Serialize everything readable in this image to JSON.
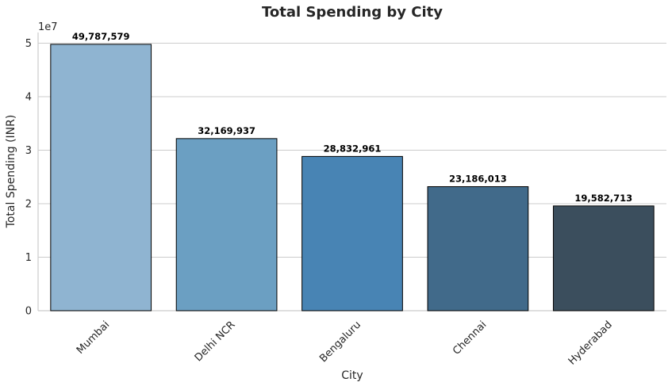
{
  "chart_data": {
    "type": "bar",
    "title": "Total Spending by City",
    "xlabel": "City",
    "ylabel": "Total Spending (INR)",
    "offset_label": "1e7",
    "categories": [
      "Mumbai",
      "Delhi NCR",
      "Bengaluru",
      "Chennai",
      "Hyderabad"
    ],
    "values": [
      49787579,
      32169937,
      28832961,
      23186013,
      19582713
    ],
    "value_labels": [
      "49,787,579",
      "32,169,937",
      "28,832,961",
      "23,186,013",
      "19,582,713"
    ],
    "colors": [
      "#8fb4d1",
      "#6b9fc2",
      "#4884b4",
      "#416a8a",
      "#3b4e5d"
    ],
    "ylim": [
      0,
      52000000
    ],
    "yticks": [
      0,
      10000000,
      20000000,
      30000000,
      40000000,
      50000000
    ],
    "ytick_labels": [
      "0",
      "1",
      "2",
      "3",
      "4",
      "5"
    ],
    "grid": "horizontal",
    "legend": "none"
  }
}
